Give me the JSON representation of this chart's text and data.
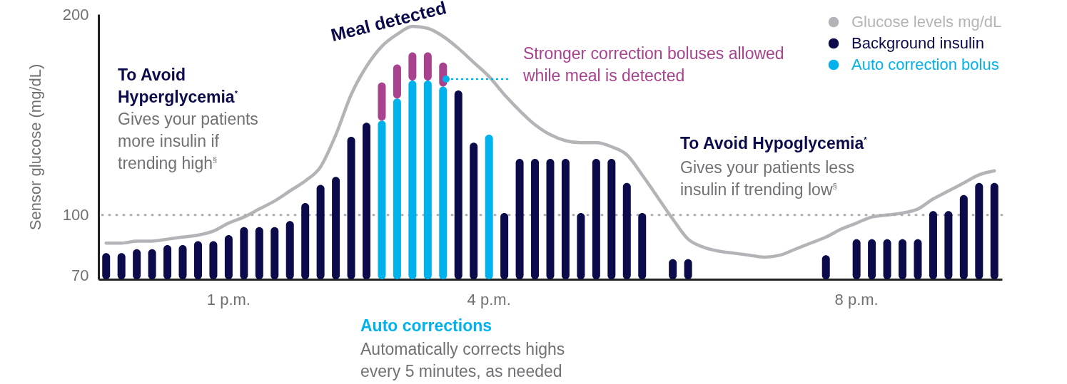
{
  "chart_data": {
    "type": "bar",
    "ylabel": "Sensor glucose (mg/dL)",
    "ylim": [
      68,
      200
    ],
    "yticks": [
      70,
      100,
      200
    ],
    "legend": "top right",
    "categories": [
      null,
      null,
      null,
      null,
      null,
      null,
      null,
      null,
      "1 p.m.",
      null,
      null,
      null,
      null,
      null,
      null,
      null,
      null,
      null,
      null,
      null,
      null,
      null,
      null,
      null,
      null,
      "4 p.m.",
      null,
      null,
      null,
      null,
      null,
      null,
      null,
      null,
      null,
      null,
      null,
      null,
      null,
      null,
      null,
      null,
      null,
      null,
      null,
      null,
      null,
      null,
      null,
      "8 p.m.",
      null,
      null,
      null,
      null,
      null,
      null,
      null,
      null,
      null
    ],
    "series": [
      {
        "name": "Glucose levels mg/dL",
        "type": "line",
        "color": "#b3b3b8",
        "values": [
          86,
          86,
          87,
          87,
          88,
          89,
          90,
          92,
          96,
          99,
          103,
          107,
          112,
          117,
          124,
          140,
          160,
          174,
          184,
          190,
          194,
          193,
          189,
          183,
          176,
          169,
          160,
          152,
          145,
          140,
          137,
          136,
          136,
          134,
          130,
          120,
          109,
          98,
          88,
          84,
          82,
          81,
          80,
          79,
          80,
          83,
          86,
          89,
          93,
          96,
          99,
          100,
          101,
          103,
          108,
          112,
          116,
          120,
          122
        ]
      },
      {
        "name": "Background insulin",
        "color": "#0b0a4a",
        "values": [
          81,
          81,
          83,
          83,
          85,
          85,
          87,
          87,
          90,
          94,
          94,
          94,
          97,
          106,
          115,
          119,
          139,
          146,
          null,
          null,
          null,
          null,
          null,
          162,
          136,
          null,
          101,
          128,
          128,
          128,
          128,
          101,
          128,
          128,
          116,
          101,
          null,
          78,
          78,
          null,
          null,
          null,
          null,
          null,
          null,
          null,
          null,
          80,
          null,
          88,
          88,
          88,
          88,
          88,
          102,
          102,
          110,
          116,
          116
        ]
      },
      {
        "name": "Auto correction bolus",
        "color": "#00b2ec",
        "values": [
          null,
          null,
          null,
          null,
          null,
          null,
          null,
          null,
          null,
          null,
          null,
          null,
          null,
          null,
          null,
          null,
          null,
          null,
          147,
          158,
          167,
          167,
          164,
          null,
          null,
          140,
          null,
          null,
          null,
          null,
          null,
          null,
          null,
          null,
          null,
          null,
          null,
          null,
          null,
          null,
          null,
          null,
          null,
          null,
          null,
          null,
          null,
          null,
          null,
          null,
          null,
          null,
          null,
          null,
          null,
          null,
          null,
          null,
          null
        ]
      },
      {
        "color": "#a8428f",
        "base": [
          null,
          null,
          null,
          null,
          null,
          null,
          null,
          null,
          null,
          null,
          null,
          null,
          null,
          null,
          null,
          null,
          null,
          null,
          147,
          158,
          167,
          167,
          164,
          null,
          null,
          null,
          null,
          null,
          null,
          null,
          null,
          null,
          null,
          null,
          null,
          null,
          null,
          null,
          null,
          null,
          null,
          null,
          null,
          null,
          null,
          null,
          null,
          null,
          null,
          null,
          null,
          null,
          null,
          null,
          null,
          null,
          null,
          null,
          null
        ],
        "values": [
          null,
          null,
          null,
          null,
          null,
          null,
          null,
          null,
          null,
          null,
          null,
          null,
          null,
          null,
          null,
          null,
          null,
          null,
          19,
          17,
          14,
          14,
          12,
          null,
          null,
          null,
          null,
          null,
          null,
          null,
          null,
          null,
          null,
          null,
          null,
          null,
          null,
          null,
          null,
          null,
          null,
          null,
          null,
          null,
          null,
          null,
          null,
          null,
          null,
          null,
          null,
          null,
          null,
          null,
          null,
          null,
          null,
          null,
          null
        ]
      }
    ],
    "ref_lines": [
      {
        "axis": "y",
        "value": 100,
        "color": "#aaaaaa",
        "line_style": "dotted"
      }
    ],
    "annotations": [
      "Meal detected",
      "To Avoid Hyperglycemia$^{*}$",
      "Gives your patients more insulin if trending high$^{§}$",
      "Stronger correction boluses allowed while meal is detected",
      "To Avoid Hypoglycemia$^{*}$",
      "Gives your patients less insulin if trending low$^{§}$",
      "Auto corrections",
      "Automatically corrects highs every 5 minutes, as needed"
    ]
  }
}
